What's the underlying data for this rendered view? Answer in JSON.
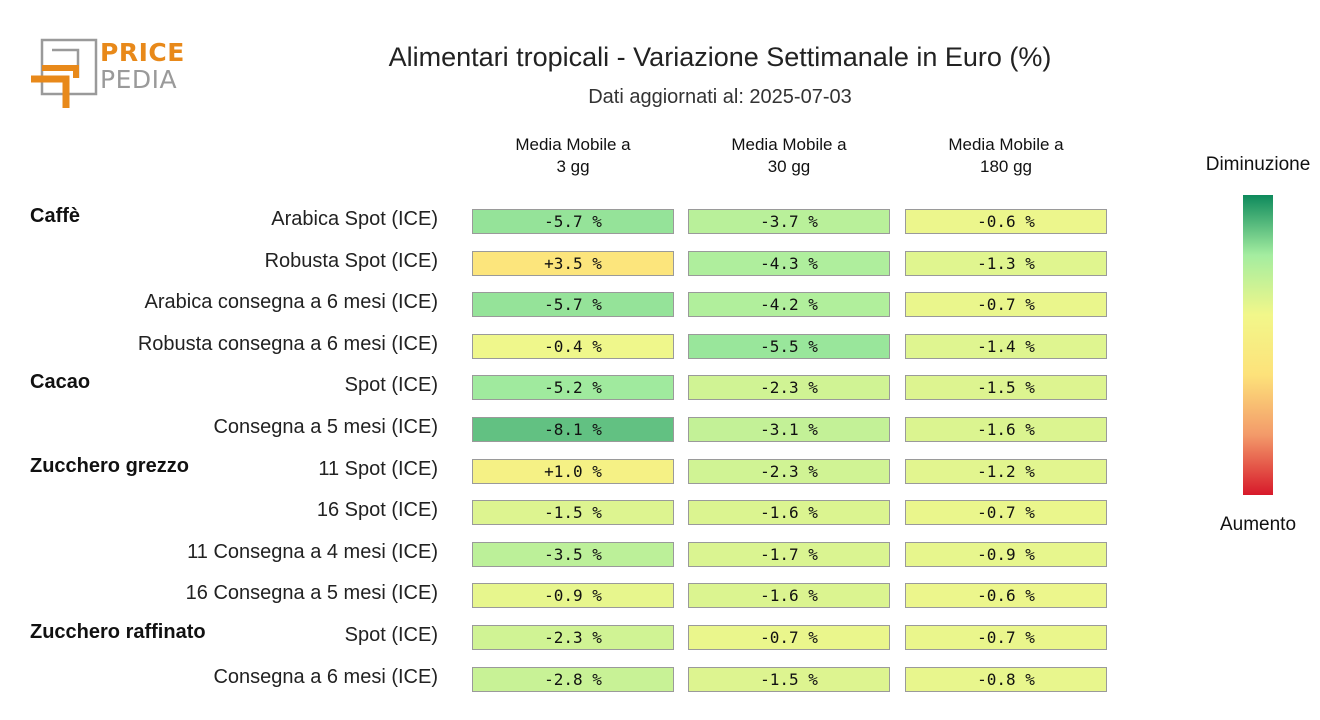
{
  "logo": {
    "line1": "PRICE",
    "line2": "PEDIA"
  },
  "chart_data": {
    "type": "heatmap",
    "title": "Alimentari tropicali - Variazione Settimanale in Euro (%)",
    "subtitle": "Dati aggiornati al: 2025-07-03",
    "columns": [
      "Media Mobile a\n3 gg",
      "Media Mobile a\n30 gg",
      "Media Mobile a\n180 gg"
    ],
    "groups": [
      {
        "name": "Caffè",
        "rows": [
          {
            "label": "Arabica Spot (ICE)",
            "values": [
              -5.7,
              -3.7,
              -0.6
            ],
            "texts": [
              "-5.7 %",
              "-3.7 %",
              "-0.6 %"
            ]
          },
          {
            "label": "Robusta Spot (ICE)",
            "values": [
              3.5,
              -4.3,
              -1.3
            ],
            "texts": [
              "+3.5 %",
              "-4.3 %",
              "-1.3 %"
            ]
          },
          {
            "label": "Arabica consegna a 6 mesi (ICE)",
            "values": [
              -5.7,
              -4.2,
              -0.7
            ],
            "texts": [
              "-5.7 %",
              "-4.2 %",
              "-0.7 %"
            ]
          },
          {
            "label": "Robusta consegna a 6 mesi (ICE)",
            "values": [
              -0.4,
              -5.5,
              -1.4
            ],
            "texts": [
              "-0.4 %",
              "-5.5 %",
              "-1.4 %"
            ]
          }
        ]
      },
      {
        "name": "Cacao",
        "rows": [
          {
            "label": "Spot (ICE)",
            "values": [
              -5.2,
              -2.3,
              -1.5
            ],
            "texts": [
              "-5.2 %",
              "-2.3 %",
              "-1.5 %"
            ]
          },
          {
            "label": "Consegna a 5 mesi (ICE)",
            "values": [
              -8.1,
              -3.1,
              -1.6
            ],
            "texts": [
              "-8.1 %",
              "-3.1 %",
              "-1.6 %"
            ]
          }
        ]
      },
      {
        "name": "Zucchero grezzo",
        "rows": [
          {
            "label": "11 Spot (ICE)",
            "values": [
              1.0,
              -2.3,
              -1.2
            ],
            "texts": [
              "+1.0 %",
              "-2.3 %",
              "-1.2 %"
            ]
          },
          {
            "label": "16 Spot (ICE)",
            "values": [
              -1.5,
              -1.6,
              -0.7
            ],
            "texts": [
              "-1.5 %",
              "-1.6 %",
              "-0.7 %"
            ]
          },
          {
            "label": "11 Consegna a 4 mesi (ICE)",
            "values": [
              -3.5,
              -1.7,
              -0.9
            ],
            "texts": [
              "-3.5 %",
              "-1.7 %",
              "-0.9 %"
            ]
          },
          {
            "label": "16 Consegna a 5 mesi (ICE)",
            "values": [
              -0.9,
              -1.6,
              -0.6
            ],
            "texts": [
              "-0.9 %",
              "-1.6 %",
              "-0.6 %"
            ]
          }
        ]
      },
      {
        "name": "Zucchero raffinato",
        "rows": [
          {
            "label": "Spot (ICE)",
            "values": [
              -2.3,
              -0.7,
              -0.7
            ],
            "texts": [
              "-2.3 %",
              "-0.7 %",
              "-0.7 %"
            ]
          },
          {
            "label": "Consegna a 6 mesi (ICE)",
            "values": [
              -2.8,
              -1.5,
              -0.8
            ],
            "texts": [
              "-2.8 %",
              "-1.5 %",
              "-0.8 %"
            ]
          }
        ]
      }
    ],
    "color_scale": {
      "top_label": "Diminuzione",
      "bottom_label": "Aumento",
      "colors": [
        "#0e8a5c",
        "#a4eda0",
        "#f2f78a",
        "#fde27a",
        "#f39a6a",
        "#d7192a"
      ]
    }
  }
}
